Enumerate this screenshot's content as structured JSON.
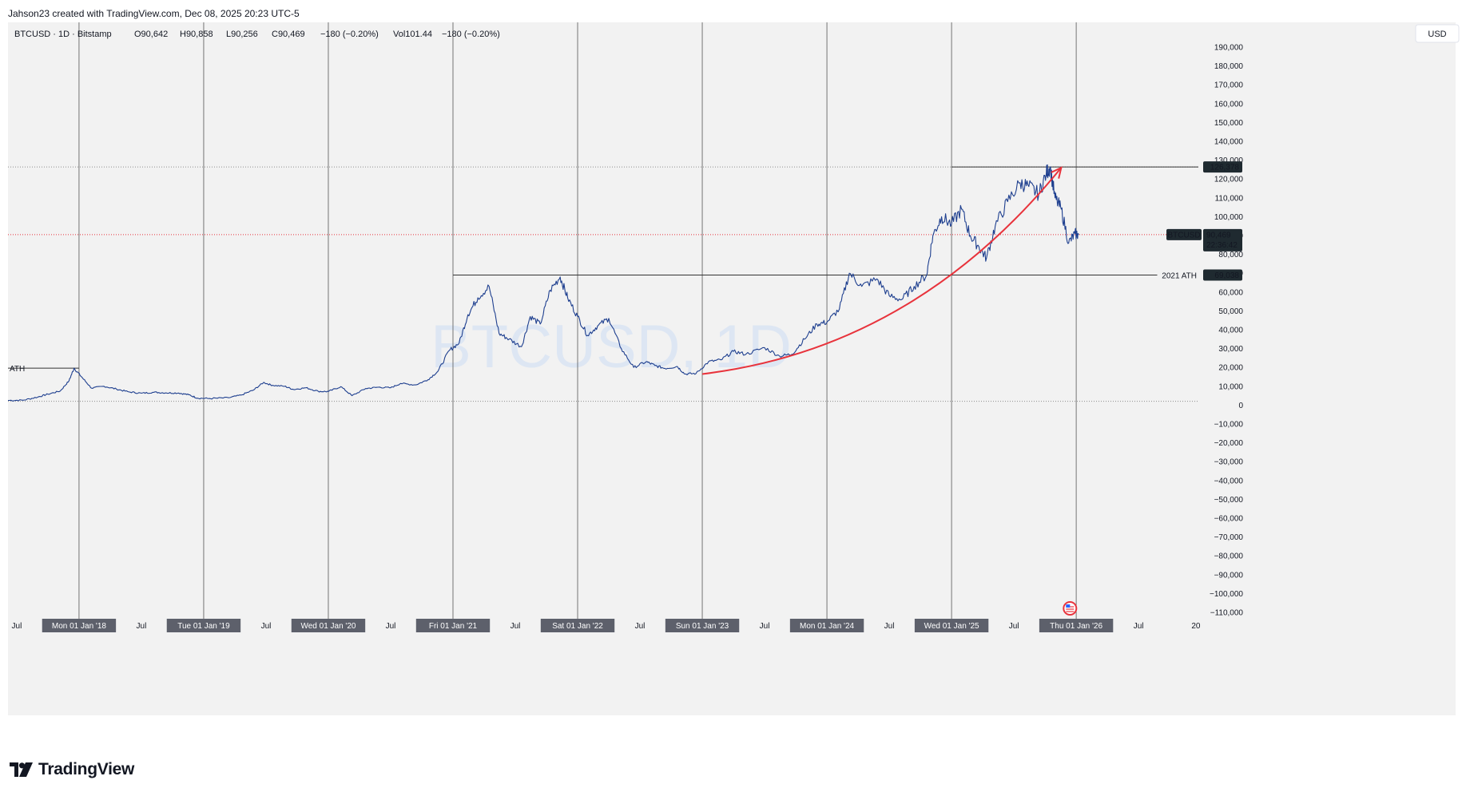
{
  "header": {
    "credit": "Jahson23 created with TradingView.com, Dec 08, 2025 20:23 UTC-5"
  },
  "legend": {
    "symbol": "BTCUSD · 1D · Bitstamp",
    "open": "O90,642",
    "high": "H90,858",
    "low": "L90,256",
    "close": "C90,469",
    "change": "−180 (−0.20%)",
    "volume": "Vol101.44",
    "volume_change": "−180 (−0.20%)"
  },
  "watermark": "BTCUSD, 1D",
  "currency_button": "USD",
  "footer": {
    "brand": "TradingView"
  },
  "colors": {
    "background": "#f2f2f2",
    "price_line": "#1e3f8f",
    "arc": "#e8333c",
    "last_price_line": "#e8333c",
    "grid": "#c8c8c8",
    "vline": "#555555",
    "hline": "#333333",
    "label_bg": "#1f2a30",
    "ath_2021_text": "#e8333c",
    "watermark": "#dde6f3"
  },
  "chart_data": {
    "type": "line",
    "title": "BTCUSD · 1D · Bitstamp",
    "xlabel": "",
    "ylabel": "USD",
    "ylim": [
      -113000,
      200000
    ],
    "y_ticks": [
      190000,
      180000,
      170000,
      160000,
      150000,
      140000,
      130000,
      120000,
      110000,
      100000,
      90000,
      80000,
      70000,
      60000,
      50000,
      40000,
      30000,
      20000,
      10000,
      0,
      -10000,
      -20000,
      -30000,
      -40000,
      -50000,
      -60000,
      -70000,
      -80000,
      -90000,
      -100000,
      -110000
    ],
    "y_tick_labels": [
      "190,000",
      "180,000",
      "170,000",
      "160,000",
      "150,000",
      "140,000",
      "130,000",
      "120,000",
      "110,000",
      "100,000",
      "90,000",
      "80,000",
      "70,000",
      "60,000",
      "50,000",
      "40,000",
      "30,000",
      "20,000",
      "10,000",
      "0",
      "−10,000",
      "−20,000",
      "−30,000",
      "−40,000",
      "−50,000",
      "−60,000",
      "−70,000",
      "−80,000",
      "−90,000",
      "−100,000",
      "−110,000"
    ],
    "x_range": [
      2017.43,
      2026.98
    ],
    "x_ticks": [
      {
        "x": 2017.5,
        "label": "Jul",
        "highlight": false
      },
      {
        "x": 2018.0,
        "label": "Mon 01 Jan '18",
        "highlight": true
      },
      {
        "x": 2018.5,
        "label": "Jul",
        "highlight": false
      },
      {
        "x": 2019.0,
        "label": "Tue 01 Jan '19",
        "highlight": true
      },
      {
        "x": 2019.5,
        "label": "Jul",
        "highlight": false
      },
      {
        "x": 2020.0,
        "label": "Wed 01 Jan '20",
        "highlight": true
      },
      {
        "x": 2020.5,
        "label": "Jul",
        "highlight": false
      },
      {
        "x": 2021.0,
        "label": "Fri 01 Jan '21",
        "highlight": true
      },
      {
        "x": 2021.5,
        "label": "Jul",
        "highlight": false
      },
      {
        "x": 2022.0,
        "label": "Sat 01 Jan '22",
        "highlight": true
      },
      {
        "x": 2022.5,
        "label": "Jul",
        "highlight": false
      },
      {
        "x": 2023.0,
        "label": "Sun 01 Jan '23",
        "highlight": true
      },
      {
        "x": 2023.5,
        "label": "Jul",
        "highlight": false
      },
      {
        "x": 2024.0,
        "label": "Mon 01 Jan '24",
        "highlight": true
      },
      {
        "x": 2024.5,
        "label": "Jul",
        "highlight": false
      },
      {
        "x": 2025.0,
        "label": "Wed 01 Jan '25",
        "highlight": true
      },
      {
        "x": 2025.5,
        "label": "Jul",
        "highlight": false
      },
      {
        "x": 2026.0,
        "label": "Thu 01 Jan '26",
        "highlight": true
      },
      {
        "x": 2026.5,
        "label": "Jul",
        "highlight": false
      },
      {
        "x": 2026.96,
        "label": "20",
        "highlight": false
      }
    ],
    "vertical_lines": [
      2018.0,
      2019.0,
      2020.0,
      2021.0,
      2022.0,
      2023.0,
      2024.0,
      2025.0,
      2026.0
    ],
    "horizontal_levels": [
      {
        "name": "ath-2017",
        "value": 19600,
        "x_start": 2017.43,
        "x_end": 2018.0,
        "label": "ATH"
      },
      {
        "name": "ath-2021",
        "value": 69038,
        "x_start": 2021.0,
        "x_end": 2026.65,
        "label": "2021 ATH",
        "price_label": "69,038"
      },
      {
        "name": "ath-2025",
        "value": 126378,
        "x_start": 2025.0,
        "x_end": 2026.98,
        "price_label": "126,378"
      }
    ],
    "dotted_levels": [
      {
        "name": "zero-dotted",
        "value": 2000
      },
      {
        "name": "ath-2025-dotted",
        "value": 126378
      },
      {
        "name": "last-price-dotted",
        "value": 90469
      }
    ],
    "last_price": {
      "value": 90469,
      "label": "BTCUSD",
      "price": "90,469",
      "countdown": "22:36:42"
    },
    "arc": {
      "start": [
        2023.0,
        16500
      ],
      "end": [
        2025.88,
        126000
      ],
      "control": [
        2024.7,
        30000
      ]
    },
    "series": [
      {
        "name": "BTCUSD",
        "points": [
          [
            2017.43,
            2500
          ],
          [
            2017.55,
            2600
          ],
          [
            2017.67,
            4300
          ],
          [
            2017.75,
            5800
          ],
          [
            2017.85,
            7500
          ],
          [
            2017.92,
            13000
          ],
          [
            2017.96,
            19600
          ],
          [
            2018.02,
            15000
          ],
          [
            2018.1,
            9000
          ],
          [
            2018.2,
            10000
          ],
          [
            2018.3,
            8500
          ],
          [
            2018.4,
            7000
          ],
          [
            2018.5,
            6300
          ],
          [
            2018.6,
            6800
          ],
          [
            2018.7,
            6500
          ],
          [
            2018.8,
            6400
          ],
          [
            2018.88,
            5500
          ],
          [
            2018.95,
            3700
          ],
          [
            2019.05,
            3500
          ],
          [
            2019.2,
            3900
          ],
          [
            2019.3,
            5300
          ],
          [
            2019.4,
            8000
          ],
          [
            2019.48,
            12000
          ],
          [
            2019.55,
            10500
          ],
          [
            2019.65,
            10000
          ],
          [
            2019.72,
            8300
          ],
          [
            2019.82,
            9200
          ],
          [
            2019.92,
            7300
          ],
          [
            2020.0,
            7200
          ],
          [
            2020.1,
            9800
          ],
          [
            2020.19,
            5000
          ],
          [
            2020.3,
            8800
          ],
          [
            2020.4,
            9500
          ],
          [
            2020.5,
            9200
          ],
          [
            2020.58,
            11500
          ],
          [
            2020.7,
            10700
          ],
          [
            2020.8,
            13500
          ],
          [
            2020.88,
            18000
          ],
          [
            2020.97,
            29000
          ],
          [
            2021.05,
            33000
          ],
          [
            2021.12,
            48000
          ],
          [
            2021.2,
            57000
          ],
          [
            2021.29,
            63000
          ],
          [
            2021.37,
            38000
          ],
          [
            2021.45,
            35000
          ],
          [
            2021.55,
            31000
          ],
          [
            2021.62,
            47000
          ],
          [
            2021.7,
            43000
          ],
          [
            2021.78,
            61000
          ],
          [
            2021.86,
            68000
          ],
          [
            2021.92,
            57000
          ],
          [
            2022.0,
            47000
          ],
          [
            2022.08,
            37000
          ],
          [
            2022.16,
            42000
          ],
          [
            2022.25,
            46000
          ],
          [
            2022.35,
            30000
          ],
          [
            2022.45,
            20000
          ],
          [
            2022.55,
            23000
          ],
          [
            2022.62,
            21000
          ],
          [
            2022.7,
            19500
          ],
          [
            2022.8,
            20500
          ],
          [
            2022.86,
            16500
          ],
          [
            2022.95,
            16800
          ],
          [
            2023.05,
            23000
          ],
          [
            2023.15,
            24000
          ],
          [
            2023.25,
            28500
          ],
          [
            2023.35,
            27000
          ],
          [
            2023.5,
            30500
          ],
          [
            2023.62,
            26000
          ],
          [
            2023.72,
            27000
          ],
          [
            2023.82,
            35000
          ],
          [
            2023.92,
            43000
          ],
          [
            2024.0,
            44000
          ],
          [
            2024.1,
            51000
          ],
          [
            2024.18,
            70000
          ],
          [
            2024.28,
            63000
          ],
          [
            2024.4,
            67000
          ],
          [
            2024.5,
            58000
          ],
          [
            2024.6,
            56000
          ],
          [
            2024.7,
            63000
          ],
          [
            2024.8,
            69000
          ],
          [
            2024.85,
            90000
          ],
          [
            2024.92,
            100000
          ],
          [
            2025.0,
            96000
          ],
          [
            2025.08,
            104000
          ],
          [
            2025.15,
            90000
          ],
          [
            2025.22,
            84000
          ],
          [
            2025.28,
            78000
          ],
          [
            2025.35,
            95000
          ],
          [
            2025.45,
            108000
          ],
          [
            2025.55,
            118000
          ],
          [
            2025.62,
            116000
          ],
          [
            2025.7,
            112000
          ],
          [
            2025.76,
            123000
          ],
          [
            2025.79,
            126378
          ],
          [
            2025.83,
            110000
          ],
          [
            2025.88,
            104000
          ],
          [
            2025.94,
            86000
          ],
          [
            2025.99,
            91000
          ],
          [
            2026.02,
            90469
          ]
        ]
      }
    ]
  }
}
